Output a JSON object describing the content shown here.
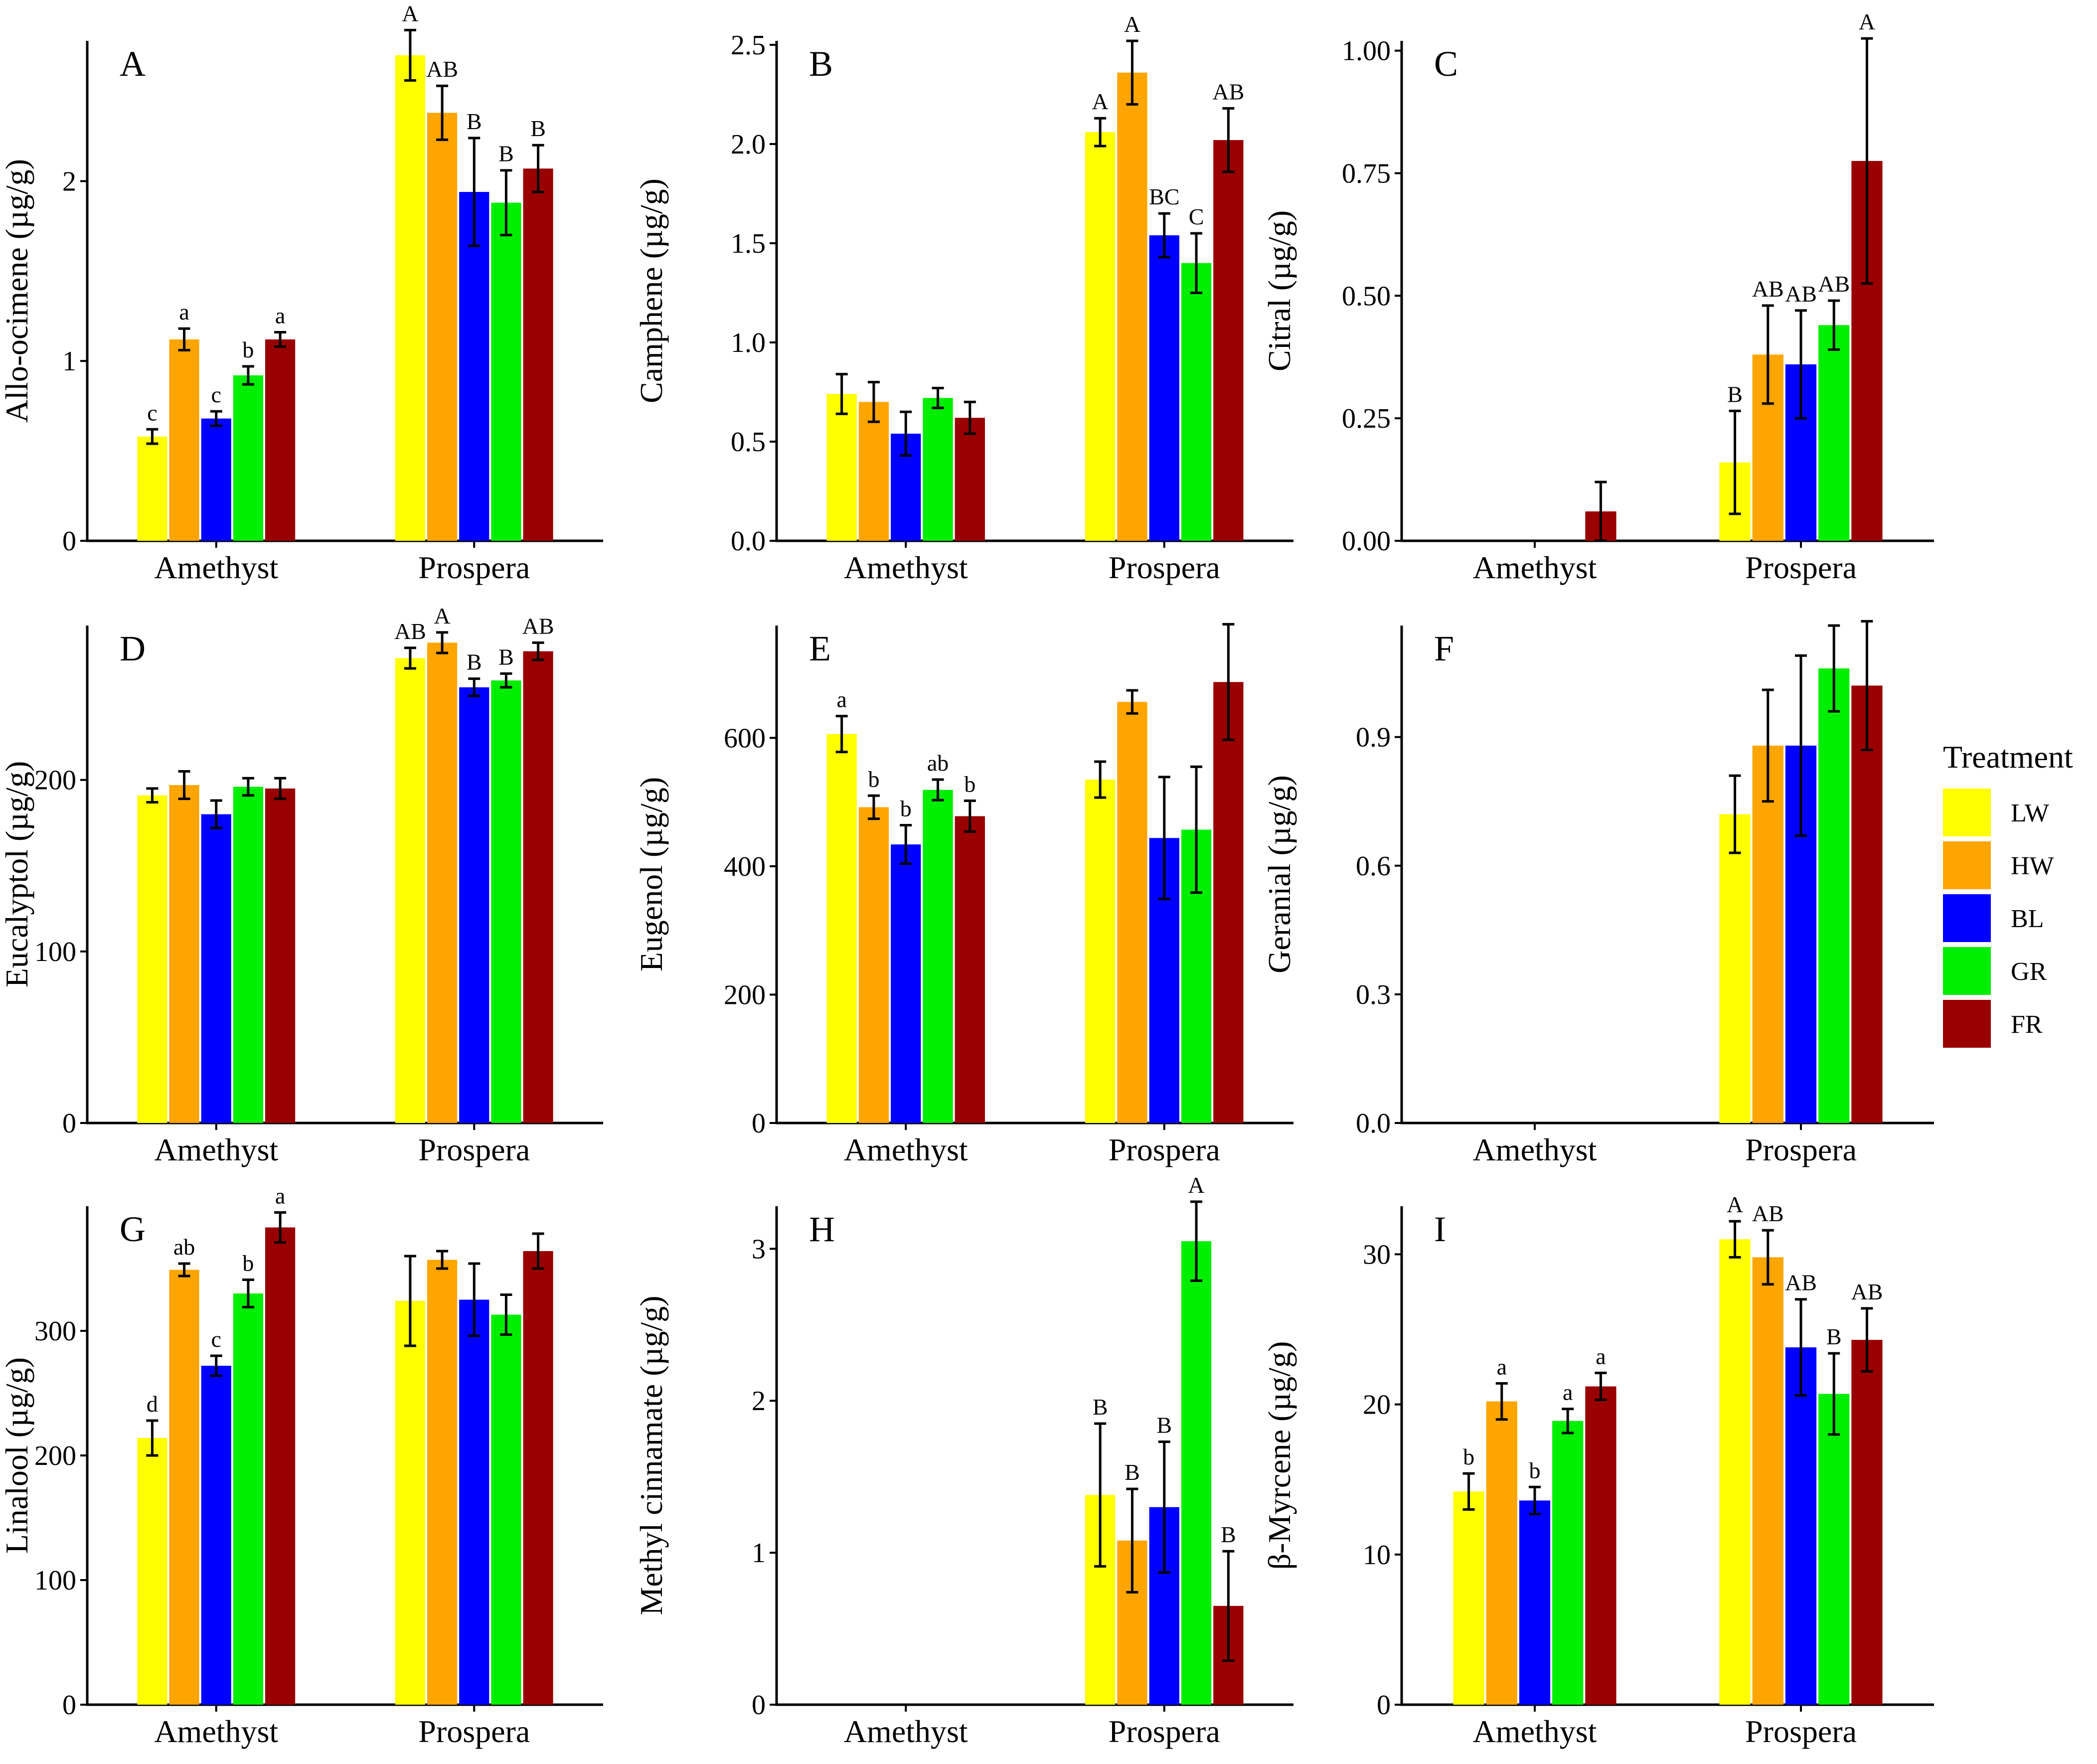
{
  "legend": {
    "title": "Treatment",
    "items": [
      {
        "label": "LW",
        "color": "#FFFF00"
      },
      {
        "label": "HW",
        "color": "#FFA500"
      },
      {
        "label": "BL",
        "color": "#0000FF"
      },
      {
        "label": "GR",
        "color": "#00EE00"
      },
      {
        "label": "FR",
        "color": "#990000"
      }
    ]
  },
  "chart_data": [
    {
      "panel": "A",
      "type": "bar",
      "ylabel": "Allo-ocimene (µg/g)",
      "categories": [
        "Amethyst",
        "Prospera"
      ],
      "ylim": [
        0,
        2.78
      ],
      "yticks": [
        0,
        1,
        2
      ],
      "series": [
        {
          "name": "LW",
          "values": [
            0.58,
            2.7
          ],
          "errors": [
            0.04,
            0.14
          ],
          "letters": [
            "c",
            "A"
          ]
        },
        {
          "name": "HW",
          "values": [
            1.12,
            2.38
          ],
          "errors": [
            0.06,
            0.15
          ],
          "letters": [
            "a",
            "AB"
          ]
        },
        {
          "name": "BL",
          "values": [
            0.68,
            1.94
          ],
          "errors": [
            0.04,
            0.3
          ],
          "letters": [
            "c",
            "B"
          ]
        },
        {
          "name": "GR",
          "values": [
            0.92,
            1.88
          ],
          "errors": [
            0.05,
            0.18
          ],
          "letters": [
            "b",
            "B"
          ]
        },
        {
          "name": "FR",
          "values": [
            1.12,
            2.07
          ],
          "errors": [
            0.04,
            0.13
          ],
          "letters": [
            "a",
            "B"
          ]
        }
      ]
    },
    {
      "panel": "B",
      "type": "bar",
      "ylabel": "Camphene (µg/g)",
      "categories": [
        "Amethyst",
        "Prospera"
      ],
      "ylim": [
        0,
        2.52
      ],
      "yticks": [
        0,
        0.5,
        1,
        1.5,
        2,
        2.5
      ],
      "tick_decimals": 1,
      "series": [
        {
          "name": "LW",
          "values": [
            0.74,
            2.06
          ],
          "errors": [
            0.1,
            0.07
          ],
          "letters": [
            "",
            "A"
          ]
        },
        {
          "name": "HW",
          "values": [
            0.7,
            2.36
          ],
          "errors": [
            0.1,
            0.16
          ],
          "letters": [
            "",
            "A"
          ]
        },
        {
          "name": "BL",
          "values": [
            0.54,
            1.54
          ],
          "errors": [
            0.11,
            0.11
          ],
          "letters": [
            "",
            "BC"
          ]
        },
        {
          "name": "GR",
          "values": [
            0.72,
            1.4
          ],
          "errors": [
            0.05,
            0.15
          ],
          "letters": [
            "",
            "C"
          ]
        },
        {
          "name": "FR",
          "values": [
            0.62,
            2.02
          ],
          "errors": [
            0.08,
            0.16
          ],
          "letters": [
            "",
            "AB"
          ]
        }
      ]
    },
    {
      "panel": "C",
      "type": "bar",
      "ylabel": "Citral (µg/g)",
      "categories": [
        "Amethyst",
        "Prospera"
      ],
      "ylim": [
        0,
        1.02
      ],
      "yticks": [
        0,
        0.25,
        0.5,
        0.75,
        1
      ],
      "tick_decimals": 2,
      "series": [
        {
          "name": "LW",
          "values": [
            0,
            0.16
          ],
          "errors": [
            0,
            0.105
          ],
          "letters": [
            "",
            "B"
          ]
        },
        {
          "name": "HW",
          "values": [
            0,
            0.38
          ],
          "errors": [
            0,
            0.1
          ],
          "letters": [
            "",
            "AB"
          ]
        },
        {
          "name": "BL",
          "values": [
            0,
            0.36
          ],
          "errors": [
            0,
            0.11
          ],
          "letters": [
            "",
            "AB"
          ]
        },
        {
          "name": "GR",
          "values": [
            0,
            0.44
          ],
          "errors": [
            0,
            0.05
          ],
          "letters": [
            "",
            "AB"
          ]
        },
        {
          "name": "FR",
          "values": [
            0.06,
            0.775
          ],
          "errors": [
            0.06,
            0.25
          ],
          "letters": [
            "",
            "A"
          ]
        }
      ]
    },
    {
      "panel": "D",
      "type": "bar",
      "ylabel": "Eucalyptol (µg/g)",
      "categories": [
        "Amethyst",
        "Prospera"
      ],
      "ylim": [
        0,
        290
      ],
      "yticks": [
        0,
        100,
        200
      ],
      "series": [
        {
          "name": "LW",
          "values": [
            191,
            271
          ],
          "errors": [
            4,
            6
          ],
          "letters": [
            "",
            "AB"
          ]
        },
        {
          "name": "HW",
          "values": [
            197,
            280
          ],
          "errors": [
            8,
            6
          ],
          "letters": [
            "",
            "A"
          ]
        },
        {
          "name": "BL",
          "values": [
            180,
            254
          ],
          "errors": [
            8,
            5
          ],
          "letters": [
            "",
            "B"
          ]
        },
        {
          "name": "GR",
          "values": [
            196,
            258
          ],
          "errors": [
            5,
            4
          ],
          "letters": [
            "",
            "B"
          ]
        },
        {
          "name": "FR",
          "values": [
            195,
            275
          ],
          "errors": [
            6,
            5
          ],
          "letters": [
            "",
            "AB"
          ]
        }
      ]
    },
    {
      "panel": "E",
      "type": "bar",
      "ylabel": "Eugenol (µg/g)",
      "categories": [
        "Amethyst",
        "Prospera"
      ],
      "ylim": [
        0,
        775
      ],
      "yticks": [
        0,
        200,
        400,
        600
      ],
      "series": [
        {
          "name": "LW",
          "values": [
            606,
            535
          ],
          "errors": [
            28,
            28
          ],
          "letters": [
            "a",
            ""
          ]
        },
        {
          "name": "HW",
          "values": [
            492,
            656
          ],
          "errors": [
            18,
            18
          ],
          "letters": [
            "b",
            ""
          ]
        },
        {
          "name": "BL",
          "values": [
            434,
            444
          ],
          "errors": [
            30,
            95
          ],
          "letters": [
            "b",
            ""
          ]
        },
        {
          "name": "GR",
          "values": [
            519,
            457
          ],
          "errors": [
            16,
            98
          ],
          "letters": [
            "ab",
            ""
          ]
        },
        {
          "name": "FR",
          "values": [
            478,
            687
          ],
          "errors": [
            24,
            90
          ],
          "letters": [
            "b",
            ""
          ]
        }
      ]
    },
    {
      "panel": "F",
      "type": "bar",
      "ylabel": "Geranial (µg/g)",
      "categories": [
        "Amethyst",
        "Prospera"
      ],
      "ylim": [
        0,
        1.16
      ],
      "yticks": [
        0,
        0.3,
        0.6,
        0.9
      ],
      "tick_decimals": 1,
      "series": [
        {
          "name": "LW",
          "values": [
            0,
            0.72
          ],
          "errors": [
            0,
            0.09
          ],
          "letters": [
            "",
            ""
          ]
        },
        {
          "name": "HW",
          "values": [
            0,
            0.88
          ],
          "errors": [
            0,
            0.13
          ],
          "letters": [
            "",
            ""
          ]
        },
        {
          "name": "BL",
          "values": [
            0,
            0.88
          ],
          "errors": [
            0,
            0.21
          ],
          "letters": [
            "",
            ""
          ]
        },
        {
          "name": "GR",
          "values": [
            0,
            1.06
          ],
          "errors": [
            0,
            0.1
          ],
          "letters": [
            "",
            ""
          ]
        },
        {
          "name": "FR",
          "values": [
            0,
            1.02
          ],
          "errors": [
            0,
            0.15
          ],
          "letters": [
            "",
            ""
          ]
        }
      ]
    },
    {
      "panel": "G",
      "type": "bar",
      "ylabel": "Linalool (µg/g)",
      "categories": [
        "Amethyst",
        "Prospera"
      ],
      "ylim": [
        0,
        400
      ],
      "yticks": [
        0,
        100,
        200,
        300
      ],
      "series": [
        {
          "name": "LW",
          "values": [
            214,
            324
          ],
          "errors": [
            14,
            36
          ],
          "letters": [
            "d",
            ""
          ]
        },
        {
          "name": "HW",
          "values": [
            349,
            357
          ],
          "errors": [
            5,
            7
          ],
          "letters": [
            "ab",
            ""
          ]
        },
        {
          "name": "BL",
          "values": [
            272,
            325
          ],
          "errors": [
            8,
            29
          ],
          "letters": [
            "c",
            ""
          ]
        },
        {
          "name": "GR",
          "values": [
            330,
            313
          ],
          "errors": [
            11,
            16
          ],
          "letters": [
            "b",
            ""
          ]
        },
        {
          "name": "FR",
          "values": [
            383,
            364
          ],
          "errors": [
            12,
            14
          ],
          "letters": [
            "a",
            ""
          ]
        }
      ]
    },
    {
      "panel": "H",
      "type": "bar",
      "ylabel": "Methyl cinnamate (µg/g)",
      "categories": [
        "Amethyst",
        "Prospera"
      ],
      "ylim": [
        0,
        3.28
      ],
      "yticks": [
        0,
        1,
        2,
        3
      ],
      "series": [
        {
          "name": "LW",
          "values": [
            0,
            1.38
          ],
          "errors": [
            0,
            0.47
          ],
          "letters": [
            "",
            "B"
          ]
        },
        {
          "name": "HW",
          "values": [
            0,
            1.08
          ],
          "errors": [
            0,
            0.34
          ],
          "letters": [
            "",
            "B"
          ]
        },
        {
          "name": "BL",
          "values": [
            0,
            1.3
          ],
          "errors": [
            0,
            0.43
          ],
          "letters": [
            "",
            "B"
          ]
        },
        {
          "name": "GR",
          "values": [
            0,
            3.05
          ],
          "errors": [
            0,
            0.26
          ],
          "letters": [
            "",
            "A"
          ]
        },
        {
          "name": "FR",
          "values": [
            0,
            0.65
          ],
          "errors": [
            0,
            0.36
          ],
          "letters": [
            "",
            "B"
          ]
        }
      ]
    },
    {
      "panel": "I",
      "type": "bar",
      "ylabel": "β-Myrcene (µg/g)",
      "categories": [
        "Amethyst",
        "Prospera"
      ],
      "ylim": [
        0,
        33.2
      ],
      "yticks": [
        0,
        10,
        20,
        30
      ],
      "series": [
        {
          "name": "LW",
          "values": [
            14.2,
            31.0
          ],
          "errors": [
            1.2,
            1.2
          ],
          "letters": [
            "b",
            "A"
          ]
        },
        {
          "name": "HW",
          "values": [
            20.2,
            29.8
          ],
          "errors": [
            1.2,
            1.8
          ],
          "letters": [
            "a",
            "AB"
          ]
        },
        {
          "name": "BL",
          "values": [
            13.6,
            23.8
          ],
          "errors": [
            0.9,
            3.2
          ],
          "letters": [
            "b",
            "AB"
          ]
        },
        {
          "name": "GR",
          "values": [
            18.9,
            20.7
          ],
          "errors": [
            0.8,
            2.7
          ],
          "letters": [
            "a",
            "B"
          ]
        },
        {
          "name": "FR",
          "values": [
            21.2,
            24.3
          ],
          "errors": [
            0.9,
            2.1
          ],
          "letters": [
            "a",
            "AB"
          ]
        }
      ]
    }
  ]
}
